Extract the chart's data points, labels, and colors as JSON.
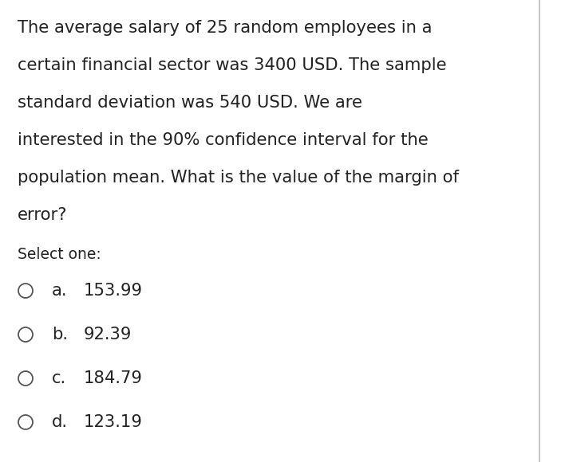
{
  "background_color": "#ffffff",
  "question_lines": [
    "The average salary of 25 random employees in a",
    "certain financial sector was 3400 USD. The sample",
    "standard deviation was 540 USD. We are",
    "interested in the 90% confidence interval for the",
    "population mean. What is the value of the margin of",
    "error?"
  ],
  "select_label": "Select one:",
  "options": [
    {
      "letter": "a.",
      "value": "153.99"
    },
    {
      "letter": "b.",
      "value": "92.39"
    },
    {
      "letter": "c.",
      "value": "184.79"
    },
    {
      "letter": "d.",
      "value": "123.19"
    }
  ],
  "text_color": "#222222",
  "circle_color": "#555555",
  "background_color_fig": "#ffffff",
  "right_border_color": "#bbbbbb",
  "fig_width": 7.08,
  "fig_height": 5.8,
  "dpi": 100
}
